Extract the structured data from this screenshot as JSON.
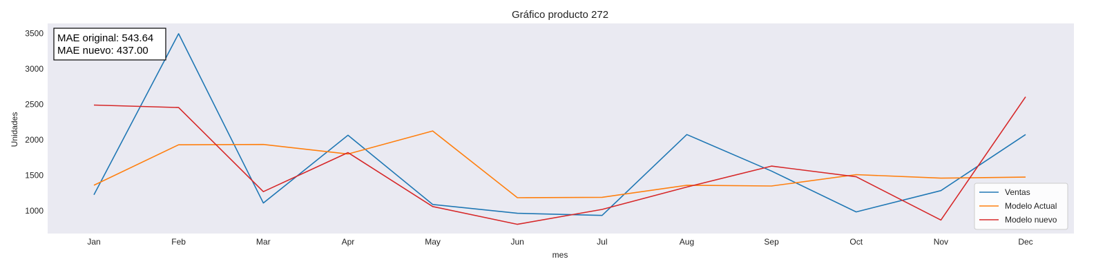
{
  "chart_data": {
    "type": "line",
    "title": "Gráfico producto 272",
    "xlabel": "mes",
    "ylabel": "Unidades",
    "categories": [
      "Jan",
      "Feb",
      "Mar",
      "Apr",
      "May",
      "Jun",
      "Jul",
      "Aug",
      "Sep",
      "Oct",
      "Nov",
      "Dec"
    ],
    "ylim": [
      680,
      3640
    ],
    "yticks": [
      1000,
      1500,
      2000,
      2500,
      3000,
      3500
    ],
    "grid": false,
    "legend_position": "bottom-right",
    "annotation": [
      "MAE original: 543.64",
      "MAE nuevo: 437.00"
    ],
    "series": [
      {
        "name": "Ventas",
        "color": "#1f77b4",
        "values": [
          1225,
          3495,
          1110,
          2065,
          1090,
          965,
          935,
          2075,
          1560,
          985,
          1285,
          2075
        ]
      },
      {
        "name": "Modelo Actual",
        "color": "#ff7f0e",
        "values": [
          1360,
          1930,
          1935,
          1800,
          2125,
          1185,
          1190,
          1360,
          1350,
          1510,
          1460,
          1475
        ]
      },
      {
        "name": "Modelo nuevo",
        "color": "#d62728",
        "values": [
          2490,
          2455,
          1270,
          1820,
          1060,
          810,
          1020,
          1335,
          1630,
          1480,
          870,
          2605
        ]
      }
    ]
  }
}
